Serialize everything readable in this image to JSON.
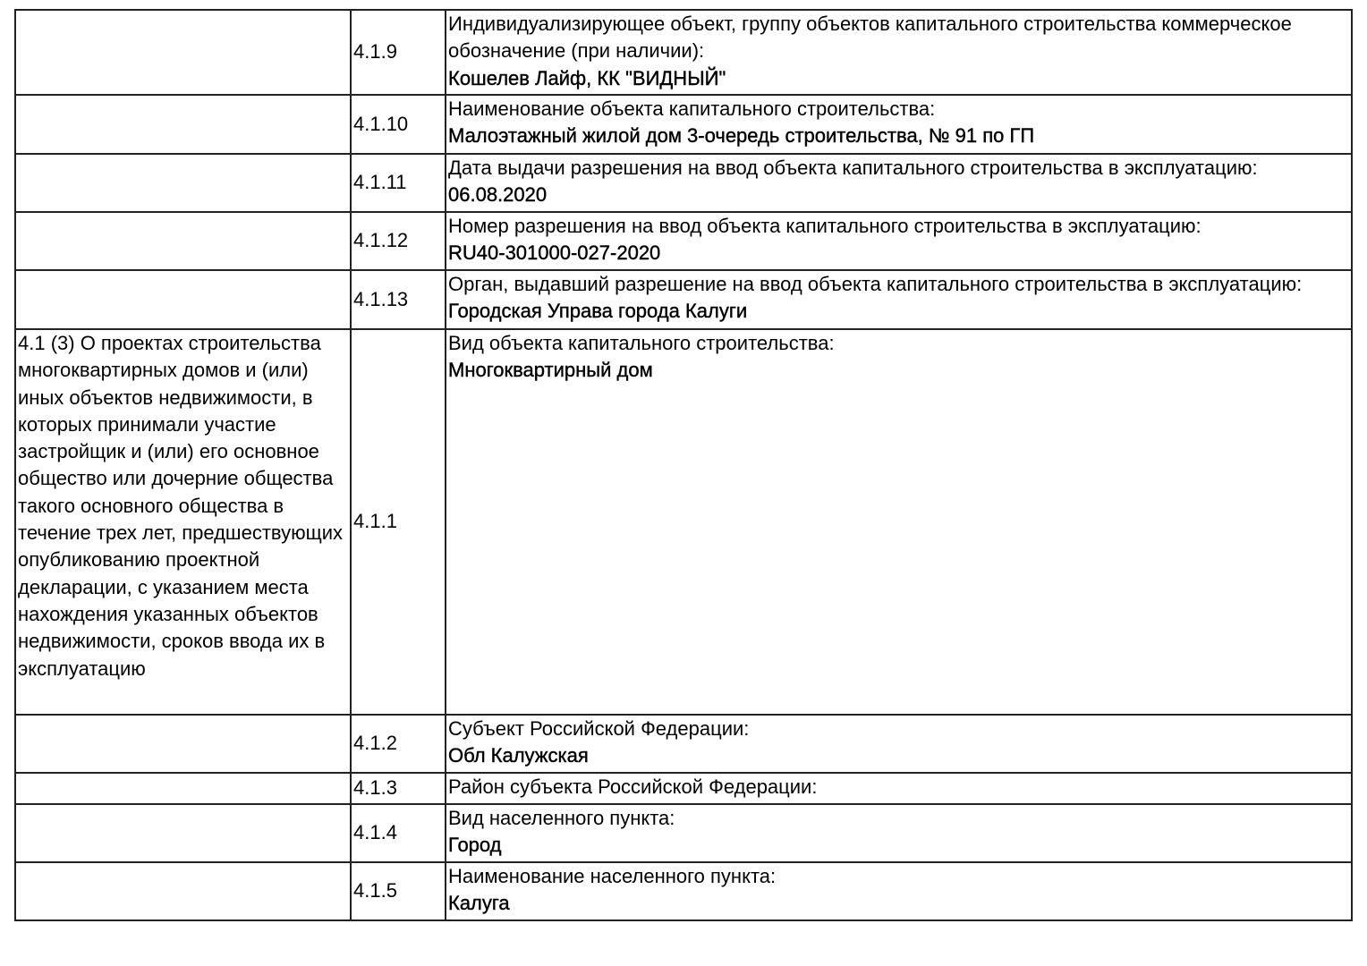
{
  "rows": [
    {
      "section": "",
      "code": "4.1.9",
      "label": "Индивидуализирующее объект, группу объектов капитального строительства коммерческое обозначение (при наличии):",
      "value": "Кошелев Лайф, КК \"ВИДНЫЙ\""
    },
    {
      "section": "",
      "code": "4.1.10",
      "label": "Наименование объекта капитального строительства:",
      "value": "Малоэтажный жилой дом 3-очередь строительства, № 91 по ГП"
    },
    {
      "section": "",
      "code": "4.1.11",
      "label": "Дата выдачи разрешения на ввод объекта капитального строительства в эксплуатацию:",
      "value": "06.08.2020"
    },
    {
      "section": "",
      "code": "4.1.12",
      "label": "Номер разрешения на ввод объекта капитального строительства в эксплуатацию:",
      "value": "RU40-301000-027-2020"
    },
    {
      "section": "",
      "code": "4.1.13",
      "label": "Орган, выдавший разрешение на ввод объекта капитального строительства в эксплуатацию:",
      "value": "Городская Управа города Калуги"
    },
    {
      "section": "4.1 (3) О проектах строительства многоквартирных домов и (или) иных объектов недвижимости, в которых принимали участие застройщик и (или) его основное общество или дочерние общества такого основного общества в течение трех лет, предшествующих опубликованию проектной декларации, с указанием места нахождения указанных объектов недвижимости, сроков ввода их в эксплуатацию",
      "code": "4.1.1",
      "label": "Вид объекта капитального строительства:",
      "value": "Многоквартирный дом"
    },
    {
      "section": "",
      "code": "4.1.2",
      "label": "Субъект Российской Федерации:",
      "value": "Обл Калужская"
    },
    {
      "section": "",
      "code": "4.1.3",
      "label": "Район субъекта Российской Федерации:",
      "value": ""
    },
    {
      "section": "",
      "code": "4.1.4",
      "label": "Вид населенного пункта:",
      "value": "Город"
    },
    {
      "section": "",
      "code": "4.1.5",
      "label": "Наименование населенного пункта:",
      "value": "Калуга"
    }
  ]
}
